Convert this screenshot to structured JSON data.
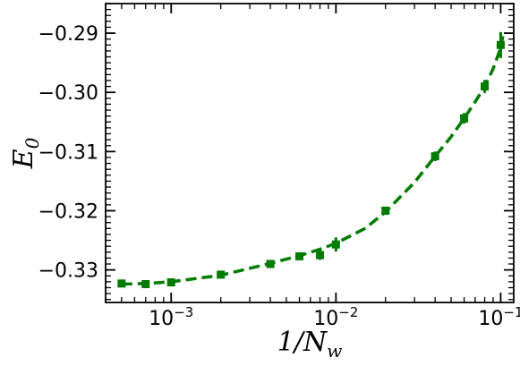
{
  "chart_data": {
    "type": "scatter",
    "xscale": "log",
    "xlim": [
      0.0004,
      0.12
    ],
    "ylim": [
      -0.3355,
      -0.285
    ],
    "xlabel_parts": {
      "main": "1/N",
      "sub": "w"
    },
    "ylabel_parts": {
      "main": "E",
      "sub": "0"
    },
    "x_tick_labels": [
      {
        "value": 0.001,
        "base": "10",
        "exp": "-3"
      },
      {
        "value": 0.01,
        "base": "10",
        "exp": "-2"
      },
      {
        "value": 0.1,
        "base": "10",
        "exp": "-1"
      }
    ],
    "y_ticks": [
      {
        "value": -0.33,
        "label": "−0.33"
      },
      {
        "value": -0.32,
        "label": "−0.32"
      },
      {
        "value": -0.31,
        "label": "−0.31"
      },
      {
        "value": -0.3,
        "label": "−0.30"
      },
      {
        "value": -0.29,
        "label": "−0.29"
      }
    ],
    "grid": false,
    "color": "#007a00",
    "series": [
      {
        "marker": "square",
        "points": [
          {
            "x": 0.0005,
            "y": -0.3323,
            "err": 0.0005
          },
          {
            "x": 0.0007,
            "y": -0.3324,
            "err": 0.0004
          },
          {
            "x": 0.001,
            "y": -0.3321,
            "err": 0.0004
          },
          {
            "x": 0.002,
            "y": -0.3308,
            "err": 0.0004
          },
          {
            "x": 0.004,
            "y": -0.329,
            "err": 0.0005
          },
          {
            "x": 0.006,
            "y": -0.3277,
            "err": 0.0006
          },
          {
            "x": 0.008,
            "y": -0.3275,
            "err": 0.0008
          },
          {
            "x": 0.01,
            "y": -0.3257,
            "err": 0.0012
          },
          {
            "x": 0.02,
            "y": -0.32,
            "err": 0.0007
          },
          {
            "x": 0.04,
            "y": -0.3108,
            "err": 0.0008
          },
          {
            "x": 0.06,
            "y": -0.3044,
            "err": 0.0009
          },
          {
            "x": 0.08,
            "y": -0.299,
            "err": 0.0011
          },
          {
            "x": 0.1,
            "y": -0.292,
            "err": 0.0022
          }
        ]
      },
      {
        "type": "line",
        "style": "dashed",
        "points": [
          {
            "x": 0.0005,
            "y": -0.3324
          },
          {
            "x": 0.0007,
            "y": -0.3323
          },
          {
            "x": 0.001,
            "y": -0.332
          },
          {
            "x": 0.002,
            "y": -0.3309
          },
          {
            "x": 0.004,
            "y": -0.3289
          },
          {
            "x": 0.006,
            "y": -0.3276
          },
          {
            "x": 0.008,
            "y": -0.3265
          },
          {
            "x": 0.01,
            "y": -0.3255
          },
          {
            "x": 0.015,
            "y": -0.323
          },
          {
            "x": 0.02,
            "y": -0.3202
          },
          {
            "x": 0.03,
            "y": -0.3152
          },
          {
            "x": 0.04,
            "y": -0.3108
          },
          {
            "x": 0.05,
            "y": -0.3075
          },
          {
            "x": 0.06,
            "y": -0.3044
          },
          {
            "x": 0.07,
            "y": -0.3016
          },
          {
            "x": 0.08,
            "y": -0.299
          },
          {
            "x": 0.09,
            "y": -0.296
          },
          {
            "x": 0.1,
            "y": -0.2925
          },
          {
            "x": 0.103,
            "y": -0.2905
          }
        ]
      }
    ]
  }
}
